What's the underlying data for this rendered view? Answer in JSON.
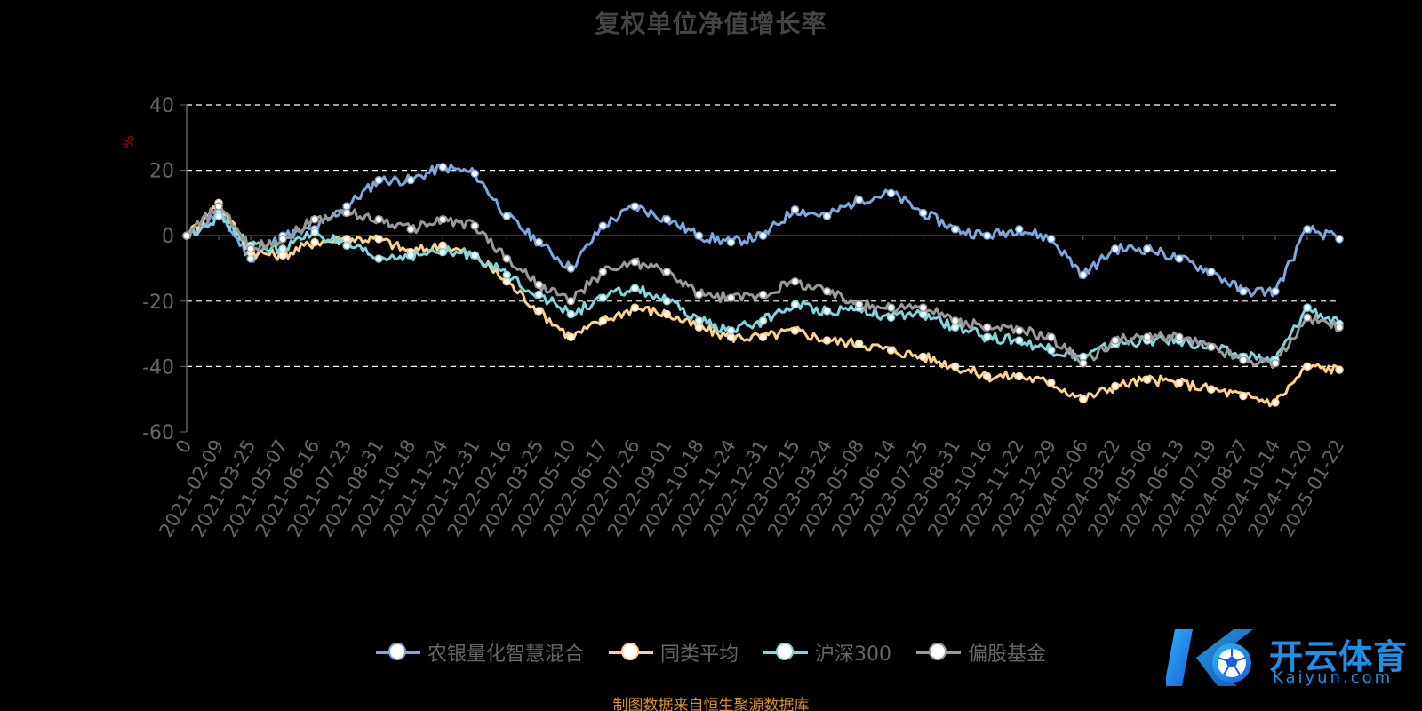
{
  "title": "复权单位净值增长率",
  "footer": "制图数据来自恒生聚源数据库",
  "watermark": {
    "cn": "开云体育",
    "en": "Kaiyun.com"
  },
  "colors": {
    "background": "#000000",
    "grid": "#ffffff",
    "axis": "#666666",
    "tick_text": "#666666",
    "unit_text": "#cc0000"
  },
  "chart_data": {
    "type": "line",
    "ylabel": "%",
    "ylim": [
      -60,
      40
    ],
    "yticks": [
      40,
      20,
      0,
      -20,
      -40,
      -60
    ],
    "grid": "horizontal-dashed",
    "legend_position": "bottom",
    "x": [
      "0",
      "2021-02-09",
      "2021-03-25",
      "2021-05-07",
      "2021-06-16",
      "2021-07-23",
      "2021-08-31",
      "2021-10-18",
      "2021-11-24",
      "2021-12-31",
      "2022-02-16",
      "2022-03-25",
      "2022-05-10",
      "2022-06-17",
      "2022-07-26",
      "2022-09-01",
      "2022-10-18",
      "2022-11-24",
      "2022-12-31",
      "2023-02-15",
      "2023-03-24",
      "2023-05-08",
      "2023-06-14",
      "2023-07-25",
      "2023-08-31",
      "2023-10-16",
      "2023-11-22",
      "2023-12-29",
      "2024-02-06",
      "2024-03-22",
      "2024-05-06",
      "2024-06-13",
      "2024-07-19",
      "2024-08-27",
      "2024-10-14",
      "2024-11-20",
      "2025-01-22"
    ],
    "series": [
      {
        "name": "农银量化智慧混合",
        "color": "#7ea7de",
        "values": [
          0,
          7,
          -7,
          0,
          2,
          9,
          17,
          17,
          21,
          19,
          6,
          -2,
          -10,
          3,
          9,
          5,
          0,
          -2,
          0,
          8,
          6,
          11,
          13,
          7,
          2,
          0,
          2,
          -1,
          -12,
          -4,
          -4,
          -7,
          -11,
          -17,
          -17,
          2,
          -1
        ]
      },
      {
        "name": "同类平均",
        "color": "#ffd08a",
        "values": [
          0,
          10,
          -5,
          -6,
          -2,
          -1,
          -1,
          -5,
          -3,
          -6,
          -14,
          -23,
          -31,
          -26,
          -22,
          -24,
          -28,
          -31,
          -31,
          -29,
          -32,
          -33,
          -35,
          -37,
          -40,
          -43,
          -43,
          -45,
          -50,
          -46,
          -44,
          -45,
          -47,
          -49,
          -51,
          -40,
          -41
        ]
      },
      {
        "name": "沪深300",
        "color": "#7fd6dd",
        "values": [
          0,
          6,
          -3,
          -4,
          1,
          -3,
          -7,
          -6,
          -5,
          -6,
          -12,
          -18,
          -24,
          -19,
          -16,
          -20,
          -26,
          -29,
          -26,
          -21,
          -23,
          -22,
          -25,
          -24,
          -28,
          -31,
          -32,
          -35,
          -37,
          -33,
          -32,
          -32,
          -34,
          -37,
          -38,
          -22,
          -27
        ]
      },
      {
        "name": "偏股基金",
        "color": "#9a9a9a",
        "values": [
          0,
          9,
          -4,
          -1,
          5,
          7,
          5,
          2,
          5,
          3,
          -7,
          -15,
          -20,
          -11,
          -8,
          -11,
          -18,
          -19,
          -18,
          -14,
          -17,
          -21,
          -22,
          -22,
          -26,
          -28,
          -29,
          -31,
          -39,
          -32,
          -31,
          -31,
          -34,
          -38,
          -39,
          -25,
          -28
        ]
      }
    ]
  }
}
